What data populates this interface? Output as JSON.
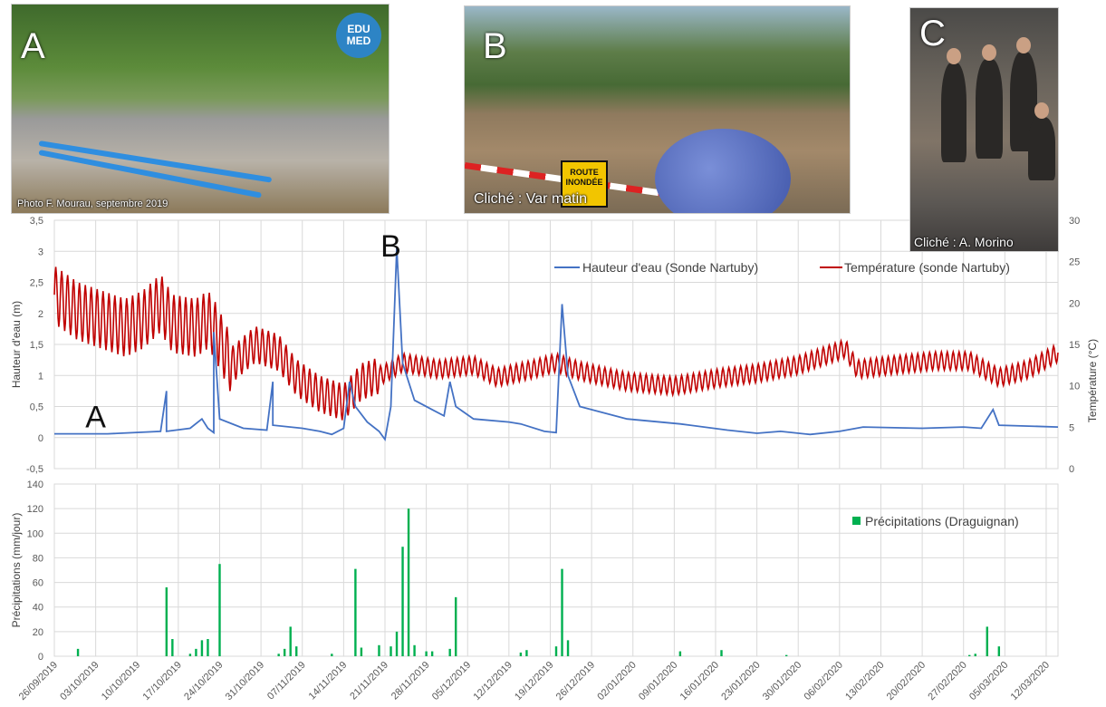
{
  "photos": {
    "a": {
      "letter": "A",
      "credit": "Photo F. Mourau, septembre 2019",
      "logo": "EDU MED"
    },
    "b": {
      "letter": "B",
      "credit": "Cliché : Var matin",
      "sign": "ROUTE INONDÉE"
    },
    "c": {
      "letter": "C",
      "credit": "Cliché : A. Morino"
    }
  },
  "colors": {
    "water": "#4472c4",
    "temperature": "#c00000",
    "rain": "#00b050",
    "grid": "#d9d9d9"
  },
  "chart_data": [
    {
      "type": "line",
      "title": "",
      "ylabel": "Hauteur d'eau (m)",
      "y2label": "Température (°C)",
      "ylim": [
        -0.5,
        3.5
      ],
      "yticks": [
        "3,5",
        "3",
        "2,5",
        "2",
        "1,5",
        "1",
        "0,5",
        "0",
        "-0,5"
      ],
      "y2lim": [
        0,
        30
      ],
      "y2ticks": [
        "30",
        "25",
        "20",
        "15",
        "10",
        "5",
        "0"
      ],
      "xlim": [
        "2019-09-26",
        "2020-03-14"
      ],
      "grid": true,
      "legend_position": "top-right",
      "annotations": [
        {
          "text": "A",
          "x": "2019-10-03",
          "y": 0.4
        },
        {
          "text": "B",
          "x": "2019-11-22",
          "y": 3.15
        }
      ],
      "series": [
        {
          "name": "Hauteur d'eau (Sonde Nartuby)",
          "axis": "left",
          "points": [
            [
              "2019-09-26",
              0.06
            ],
            [
              "2019-10-05",
              0.06
            ],
            [
              "2019-10-14",
              0.1
            ],
            [
              "2019-10-15",
              0.75
            ],
            [
              "2019-10-15",
              0.1
            ],
            [
              "2019-10-19",
              0.15
            ],
            [
              "2019-10-21",
              0.3
            ],
            [
              "2019-10-22",
              0.15
            ],
            [
              "2019-10-23",
              0.08
            ],
            [
              "2019-10-23",
              1.7
            ],
            [
              "2019-10-24",
              0.3
            ],
            [
              "2019-10-28",
              0.15
            ],
            [
              "2019-11-01",
              0.12
            ],
            [
              "2019-11-02",
              0.9
            ],
            [
              "2019-11-02",
              0.2
            ],
            [
              "2019-11-07",
              0.15
            ],
            [
              "2019-11-10",
              0.1
            ],
            [
              "2019-11-12",
              0.05
            ],
            [
              "2019-11-14",
              0.15
            ],
            [
              "2019-11-15",
              0.9
            ],
            [
              "2019-11-16",
              0.5
            ],
            [
              "2019-11-18",
              0.25
            ],
            [
              "2019-11-20",
              0.1
            ],
            [
              "2019-11-21",
              -0.03
            ],
            [
              "2019-11-22",
              0.5
            ],
            [
              "2019-11-23",
              3.05
            ],
            [
              "2019-11-24",
              1.2
            ],
            [
              "2019-11-26",
              0.6
            ],
            [
              "2019-11-29",
              0.45
            ],
            [
              "2019-12-01",
              0.35
            ],
            [
              "2019-12-02",
              0.9
            ],
            [
              "2019-12-03",
              0.5
            ],
            [
              "2019-12-06",
              0.3
            ],
            [
              "2019-12-12",
              0.25
            ],
            [
              "2019-12-14",
              0.22
            ],
            [
              "2019-12-18",
              0.1
            ],
            [
              "2019-12-20",
              0.08
            ],
            [
              "2019-12-21",
              2.15
            ],
            [
              "2019-12-22",
              1.0
            ],
            [
              "2019-12-24",
              0.5
            ],
            [
              "2020-01-01",
              0.3
            ],
            [
              "2020-01-10",
              0.22
            ],
            [
              "2020-01-18",
              0.12
            ],
            [
              "2020-01-23",
              0.07
            ],
            [
              "2020-01-27",
              0.1
            ],
            [
              "2020-02-01",
              0.05
            ],
            [
              "2020-02-06",
              0.1
            ],
            [
              "2020-02-10",
              0.17
            ],
            [
              "2020-02-20",
              0.15
            ],
            [
              "2020-02-27",
              0.17
            ],
            [
              "2020-03-01",
              0.15
            ],
            [
              "2020-03-03",
              0.45
            ],
            [
              "2020-03-04",
              0.2
            ],
            [
              "2020-03-14",
              0.17
            ]
          ]
        },
        {
          "name": "Température (sonde Nartuby)",
          "axis": "right",
          "points": [
            [
              "2019-09-26",
              21
            ],
            [
              "2019-09-30",
              19
            ],
            [
              "2019-10-04",
              18
            ],
            [
              "2019-10-08",
              17
            ],
            [
              "2019-10-11",
              18
            ],
            [
              "2019-10-14",
              20
            ],
            [
              "2019-10-16",
              17.5
            ],
            [
              "2019-10-20",
              17
            ],
            [
              "2019-10-22",
              18
            ],
            [
              "2019-10-23",
              17
            ],
            [
              "2019-10-26",
              12.5
            ],
            [
              "2019-10-30",
              15
            ],
            [
              "2019-11-03",
              14
            ],
            [
              "2019-11-06",
              11
            ],
            [
              "2019-11-10",
              9
            ],
            [
              "2019-11-14",
              8
            ],
            [
              "2019-11-17",
              10.5
            ],
            [
              "2019-11-21",
              11.5
            ],
            [
              "2019-11-24",
              12.8
            ],
            [
              "2019-11-30",
              12
            ],
            [
              "2019-12-06",
              12.5
            ],
            [
              "2019-12-10",
              11
            ],
            [
              "2019-12-16",
              12
            ],
            [
              "2019-12-20",
              12.8
            ],
            [
              "2019-12-24",
              11.8
            ],
            [
              "2020-01-01",
              10.5
            ],
            [
              "2020-01-09",
              10
            ],
            [
              "2020-01-17",
              11
            ],
            [
              "2020-01-23",
              11.5
            ],
            [
              "2020-01-30",
              12.5
            ],
            [
              "2020-02-07",
              14.5
            ],
            [
              "2020-02-09",
              12
            ],
            [
              "2020-02-15",
              12.5
            ],
            [
              "2020-02-22",
              13
            ],
            [
              "2020-02-28",
              13
            ],
            [
              "2020-03-04",
              11
            ],
            [
              "2020-03-09",
              12
            ],
            [
              "2020-03-14",
              14
            ]
          ]
        }
      ]
    },
    {
      "type": "bar",
      "title": "",
      "ylabel": "Précipitations (mm/jour)",
      "ylim": [
        0,
        140
      ],
      "yticks": [
        "140",
        "120",
        "100",
        "80",
        "60",
        "40",
        "20",
        "0"
      ],
      "xlim": [
        "2019-09-26",
        "2020-03-14"
      ],
      "xtick_labels": [
        "26/09/2019",
        "03/10/2019",
        "10/10/2019",
        "17/10/2019",
        "24/10/2019",
        "31/10/2019",
        "07/11/2019",
        "14/11/2019",
        "21/11/2019",
        "28/11/2019",
        "05/12/2019",
        "12/12/2019",
        "19/12/2019",
        "26/12/2019",
        "02/01/2020",
        "09/01/2020",
        "16/01/2020",
        "23/01/2020",
        "30/01/2020",
        "06/02/2020",
        "13/02/2020",
        "20/02/2020",
        "27/02/2020",
        "05/03/2020",
        "12/03/2020"
      ],
      "grid": true,
      "legend_position": "top-right",
      "series": [
        {
          "name": "Précipitations (Draguignan)",
          "points": [
            [
              "2019-09-30",
              6
            ],
            [
              "2019-10-15",
              56
            ],
            [
              "2019-10-16",
              14
            ],
            [
              "2019-10-19",
              2
            ],
            [
              "2019-10-20",
              6
            ],
            [
              "2019-10-21",
              13
            ],
            [
              "2019-10-22",
              14
            ],
            [
              "2019-10-24",
              75
            ],
            [
              "2019-11-03",
              2
            ],
            [
              "2019-11-04",
              6
            ],
            [
              "2019-11-05",
              24
            ],
            [
              "2019-11-06",
              8
            ],
            [
              "2019-11-12",
              2
            ],
            [
              "2019-11-16",
              71
            ],
            [
              "2019-11-17",
              7
            ],
            [
              "2019-11-20",
              9
            ],
            [
              "2019-11-22",
              8
            ],
            [
              "2019-11-23",
              20
            ],
            [
              "2019-11-24",
              89
            ],
            [
              "2019-11-25",
              120
            ],
            [
              "2019-11-26",
              9
            ],
            [
              "2019-11-28",
              4
            ],
            [
              "2019-11-29",
              4
            ],
            [
              "2019-12-02",
              6
            ],
            [
              "2019-12-03",
              48
            ],
            [
              "2019-12-14",
              3
            ],
            [
              "2019-12-15",
              5
            ],
            [
              "2019-12-20",
              8
            ],
            [
              "2019-12-21",
              71
            ],
            [
              "2019-12-22",
              13
            ],
            [
              "2020-01-10",
              4
            ],
            [
              "2020-01-17",
              5
            ],
            [
              "2020-01-28",
              1
            ],
            [
              "2020-02-28",
              1
            ],
            [
              "2020-02-29",
              2
            ],
            [
              "2020-03-02",
              24
            ],
            [
              "2020-03-04",
              8
            ]
          ]
        }
      ]
    }
  ]
}
